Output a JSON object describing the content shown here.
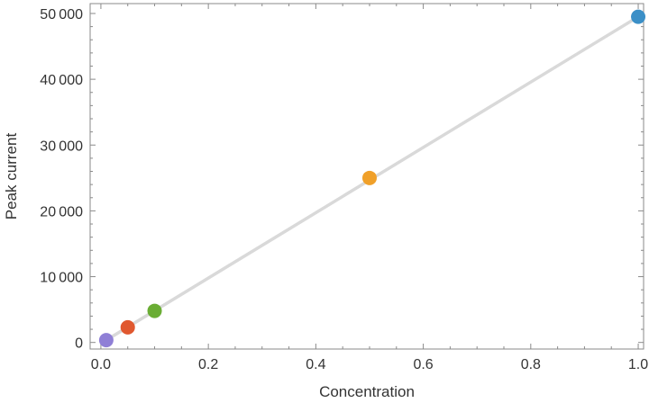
{
  "chart_data": {
    "type": "scatter",
    "title": "",
    "xlabel": "Concentration",
    "ylabel": "Peak current",
    "xlim": [
      -0.02,
      1.01
    ],
    "ylim": [
      -1000,
      51500
    ],
    "x_ticks": [
      0.0,
      0.2,
      0.4,
      0.6,
      0.8,
      1.0
    ],
    "x_tick_labels": [
      "0.0",
      "0.2",
      "0.4",
      "0.6",
      "0.8",
      "1.0"
    ],
    "y_ticks": [
      0,
      10000,
      20000,
      30000,
      40000,
      50000
    ],
    "y_tick_labels": [
      "0",
      "10 000",
      "20 000",
      "30 000",
      "40 000",
      "50 000"
    ],
    "grid": false,
    "frame": true,
    "points": [
      {
        "x": 0.01,
        "y": 350,
        "color": "#8f7fd6"
      },
      {
        "x": 0.05,
        "y": 2300,
        "color": "#e0582f"
      },
      {
        "x": 0.1,
        "y": 4800,
        "color": "#6aad34"
      },
      {
        "x": 0.5,
        "y": 25000,
        "color": "#f0a029"
      },
      {
        "x": 1.0,
        "y": 49500,
        "color": "#3b8fc7"
      }
    ],
    "fit_line": {
      "x": [
        0.01,
        1.0
      ],
      "y": [
        350,
        49500
      ],
      "color": "#d9d9d9"
    }
  }
}
